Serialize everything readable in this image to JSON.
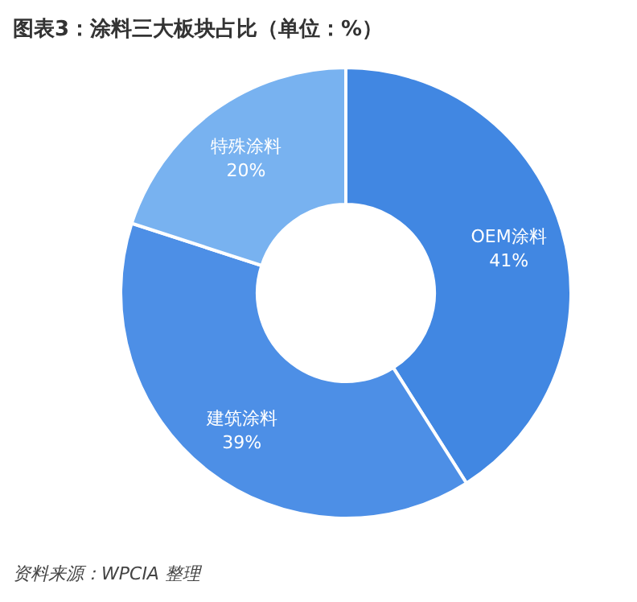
{
  "chart_data": {
    "type": "donut",
    "title": "图表3：涂料三大板块占比（单位：%）",
    "categories": [
      "OEM涂料",
      "建筑涂料",
      "特殊涂料"
    ],
    "values": [
      41,
      39,
      20
    ],
    "value_labels": [
      "41%",
      "39%",
      "20%"
    ],
    "colors": [
      "#4187e2",
      "#4d8fe6",
      "#78b2f0"
    ],
    "annotations": [
      "资料来源：WPCIA 整理"
    ]
  }
}
